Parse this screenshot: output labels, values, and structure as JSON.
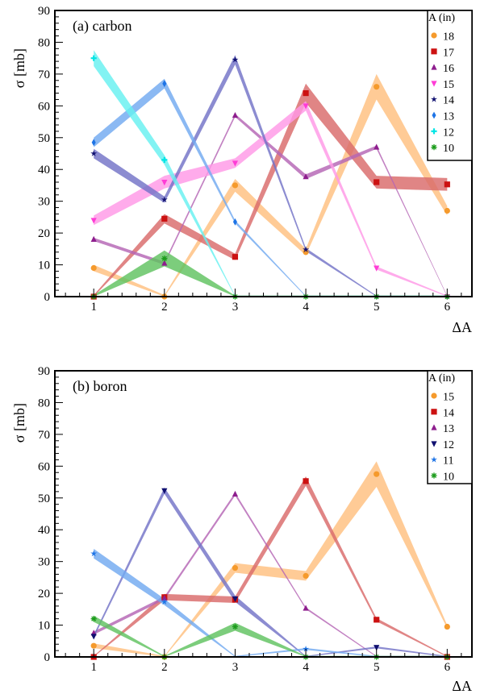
{
  "chart_data": [
    {
      "type": "line",
      "title": "(a) carbon",
      "xlabel": "ΔA",
      "ylabel": "σ [mb]",
      "xlim": [
        0.45,
        6.35
      ],
      "ylim": [
        0,
        90
      ],
      "xticks": [
        1,
        2,
        3,
        4,
        5,
        6
      ],
      "yticks": [
        0,
        10,
        20,
        30,
        40,
        50,
        60,
        70,
        80,
        90
      ],
      "legend_title": "A (in)",
      "legend_position": "top-right",
      "grid": false,
      "series": [
        {
          "name": "18",
          "color": "#f59a2c",
          "band": "#ffbf7f",
          "marker": "circle",
          "x": [
            1,
            2,
            3,
            4,
            5,
            6
          ],
          "y": [
            9,
            0,
            35,
            14,
            66,
            27
          ],
          "width": [
            2,
            1,
            4,
            2,
            8,
            3
          ]
        },
        {
          "name": "17",
          "color": "#cc1111",
          "band": "#d96a6a",
          "marker": "square",
          "x": [
            1,
            2,
            3,
            4,
            5,
            6
          ],
          "y": [
            0,
            24.5,
            12.5,
            64,
            36,
            35.3
          ],
          "width": [
            1,
            3,
            2,
            6,
            4,
            4
          ]
        },
        {
          "name": "16",
          "color": "#8e1e8e",
          "band": "#b565b5",
          "marker": "triangle",
          "x": [
            1,
            2,
            3,
            4,
            5,
            6
          ],
          "y": [
            18,
            10.5,
            57,
            37.7,
            47,
            0
          ],
          "width": [
            1,
            1,
            1,
            1.5,
            1,
            0.5
          ]
        },
        {
          "name": "15",
          "color": "#ff3cd6",
          "band": "#ff99e6",
          "marker": "triangle-down",
          "x": [
            1,
            2,
            3,
            4,
            5,
            6
          ],
          "y": [
            24,
            36,
            42,
            60,
            9,
            0
          ],
          "width": [
            3,
            4,
            3,
            3,
            1,
            0.5
          ]
        },
        {
          "name": "14",
          "color": "#101070",
          "band": "#7373c7",
          "marker": "star",
          "x": [
            1,
            2,
            3,
            4,
            5,
            6
          ],
          "y": [
            45,
            30.5,
            74.5,
            14.8,
            0,
            0
          ],
          "width": [
            3,
            2,
            3,
            1,
            0.5,
            0.5
          ]
        },
        {
          "name": "13",
          "color": "#1e74e6",
          "band": "#72aaf0",
          "marker": "diamond",
          "x": [
            1,
            2,
            3,
            4,
            5,
            6
          ],
          "y": [
            48.5,
            67,
            23.5,
            0,
            0,
            0
          ],
          "width": [
            3,
            3,
            1,
            0.5,
            0.5,
            0.5
          ]
        },
        {
          "name": "12",
          "color": "#00e5e5",
          "band": "#66f0f0",
          "marker": "cross",
          "x": [
            1,
            2,
            3,
            4,
            5,
            6
          ],
          "y": [
            75,
            43,
            0,
            0,
            0,
            0
          ],
          "width": [
            5,
            3,
            0.5,
            0.5,
            0.5,
            0.5
          ]
        },
        {
          "name": "10",
          "color": "#1c9c1c",
          "band": "#5fc25f",
          "marker": "asterisk",
          "x": [
            1,
            2,
            3,
            4,
            5,
            6
          ],
          "y": [
            0,
            12,
            0,
            0,
            0,
            0
          ],
          "width": [
            1,
            5,
            0.5,
            0.5,
            0.5,
            0.5
          ]
        }
      ]
    },
    {
      "type": "line",
      "title": "(b) boron",
      "xlabel": "ΔA",
      "ylabel": "σ [mb]",
      "xlim": [
        0.45,
        6.35
      ],
      "ylim": [
        0,
        90
      ],
      "xticks": [
        1,
        2,
        3,
        4,
        5,
        6
      ],
      "yticks": [
        0,
        10,
        20,
        30,
        40,
        50,
        60,
        70,
        80,
        90
      ],
      "legend_title": "A (in)",
      "legend_position": "top-right",
      "grid": false,
      "series": [
        {
          "name": "15",
          "color": "#f59a2c",
          "band": "#ffbf7f",
          "marker": "circle",
          "x": [
            1,
            2,
            3,
            4,
            5,
            6
          ],
          "y": [
            3.5,
            0,
            28,
            25.5,
            57.5,
            9.5
          ],
          "width": [
            1.5,
            0.5,
            3,
            3,
            8,
            1
          ]
        },
        {
          "name": "14",
          "color": "#cc1111",
          "band": "#d96a6a",
          "marker": "square",
          "x": [
            1,
            2,
            3,
            4,
            5,
            6
          ],
          "y": [
            0,
            18.8,
            18,
            55.3,
            11.7,
            0
          ],
          "width": [
            0.5,
            2,
            2,
            3,
            1,
            0.5
          ]
        },
        {
          "name": "13",
          "color": "#8e1e8e",
          "band": "#b565b5",
          "marker": "triangle",
          "x": [
            1,
            2,
            3,
            4,
            5,
            6
          ],
          "y": [
            7.5,
            18.5,
            51.2,
            15.3,
            0,
            0
          ],
          "width": [
            1,
            1,
            1,
            0.5,
            0.5,
            0.5
          ]
        },
        {
          "name": "12",
          "color": "#101070",
          "band": "#7373c7",
          "marker": "triangle-down",
          "x": [
            1,
            2,
            3,
            4,
            5,
            6
          ],
          "y": [
            6.5,
            52.3,
            18.3,
            0,
            3,
            0
          ],
          "width": [
            1,
            2,
            2,
            0.5,
            0.5,
            0.5
          ]
        },
        {
          "name": "11",
          "color": "#1e74e6",
          "band": "#72aaf0",
          "marker": "star",
          "x": [
            1,
            2,
            3,
            4,
            5,
            6
          ],
          "y": [
            32.5,
            17.3,
            0,
            2.5,
            0,
            0
          ],
          "width": [
            3,
            2,
            0.5,
            0.5,
            0.5,
            0.5
          ]
        },
        {
          "name": "10",
          "color": "#1c9c1c",
          "band": "#5fc25f",
          "marker": "asterisk",
          "x": [
            1,
            2,
            3,
            4,
            5,
            6
          ],
          "y": [
            12,
            0,
            9.5,
            0,
            0,
            0
          ],
          "width": [
            2,
            0.5,
            2.5,
            0.5,
            0.5,
            0.5
          ]
        }
      ]
    }
  ]
}
